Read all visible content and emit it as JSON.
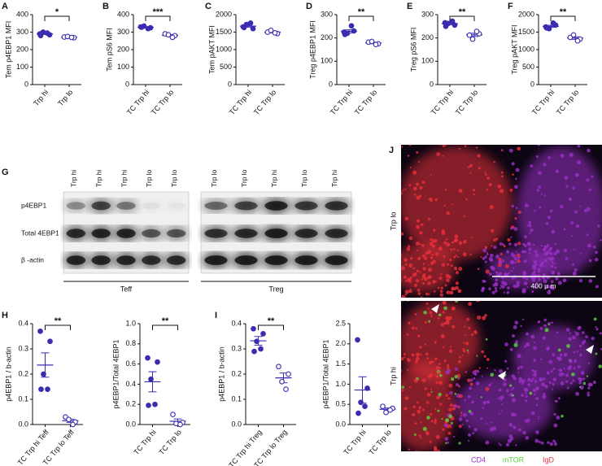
{
  "chart_data": [
    {
      "panel": "A",
      "type": "dot",
      "ylabel": "Tem p4EBP1 MFI",
      "categories": [
        "Trp hi",
        "Trp lo"
      ],
      "values": [
        [
          290,
          285,
          300,
          295,
          280
        ],
        [
          272,
          268,
          275,
          270
        ]
      ],
      "color": "#3b2db0",
      "markers": [
        "filled",
        "open"
      ],
      "ylim": [
        0,
        400
      ],
      "yticks": [
        0,
        100,
        200,
        300,
        400
      ],
      "significance": "*"
    },
    {
      "panel": "B",
      "type": "dot",
      "ylabel": "Tem pS6 MFI",
      "categories": [
        "TC Trp hi",
        "TC Trp lo"
      ],
      "values": [
        [
          330,
          325,
          335,
          320,
          328
        ],
        [
          290,
          280,
          285,
          270
        ]
      ],
      "color": "#3b2db0",
      "markers": [
        "filled",
        "open"
      ],
      "ylim": [
        0,
        400
      ],
      "yticks": [
        0,
        100,
        200,
        300,
        400
      ],
      "significance": "***"
    },
    {
      "panel": "C",
      "type": "dot",
      "ylabel": "Tem pAKT MFI",
      "categories": [
        "TC Trp hi",
        "TC Trp lo"
      ],
      "values": [
        [
          1650,
          1600,
          1720,
          1760,
          1630
        ],
        [
          1500,
          1460,
          1550,
          1480
        ]
      ],
      "color": "#3b2db0",
      "markers": [
        "filled",
        "open"
      ],
      "ylim": [
        0,
        2000
      ],
      "yticks": [
        0,
        500,
        1000,
        1500,
        2000
      ]
    },
    {
      "panel": "D",
      "type": "dot",
      "ylabel": "Treg p4EBP1 MFI",
      "categories": [
        "TC Trp hi",
        "TC Trp lo"
      ],
      "values": [
        [
          225,
          230,
          220,
          252,
          215
        ],
        [
          182,
          175,
          185,
          172
        ]
      ],
      "color": "#3b2db0",
      "markers": [
        "filled",
        "open"
      ],
      "ylim": [
        0,
        300
      ],
      "yticks": [
        0,
        100,
        200,
        300
      ],
      "significance": "**"
    },
    {
      "panel": "E",
      "type": "dot",
      "ylabel": "Treg pS6 MFI",
      "categories": [
        "TC Trp hi",
        "TC Trp lo"
      ],
      "values": [
        [
          265,
          255,
          262,
          272,
          250
        ],
        [
          212,
          218,
          195,
          228
        ]
      ],
      "color": "#3b2db0",
      "markers": [
        "filled",
        "open"
      ],
      "ylim": [
        0,
        300
      ],
      "yticks": [
        0,
        100,
        200,
        300
      ],
      "significance": "**"
    },
    {
      "panel": "F",
      "type": "dot",
      "ylabel": "Treg pAKT MFI",
      "categories": [
        "TC Trp hi",
        "TC Trp lo"
      ],
      "values": [
        [
          1650,
          1700,
          1600,
          1760,
          1620
        ],
        [
          1350,
          1300,
          1420,
          1250
        ]
      ],
      "color": "#3b2db0",
      "markers": [
        "filled",
        "open"
      ],
      "ylim": [
        0,
        2000
      ],
      "yticks": [
        0,
        500,
        1000,
        1500,
        2000
      ],
      "significance": "**"
    },
    {
      "panel": "H",
      "type": "dot",
      "ylabel": "p4EBP1 / b-actin",
      "categories": [
        "TC Trp hi Teff",
        "TC Trp lo Teff"
      ],
      "values": [
        [
          0.37,
          0.33,
          0.2,
          0.14,
          0.14
        ],
        [
          0.03,
          0.01,
          0.02,
          0.0
        ]
      ],
      "color": "#3b2db0",
      "markers": [
        "filled",
        "open"
      ],
      "ylim": [
        0,
        0.4
      ],
      "yticks": [
        {
          "value": 0,
          "label": "0.0"
        },
        0.1,
        0.2,
        0.3,
        0.4
      ],
      "significance": "**"
    },
    {
      "type": "dot",
      "ylabel": "p4EBP1/Total 4EBP1",
      "categories": [
        "TC Trp hi",
        "TC Trp lo"
      ],
      "values": [
        [
          0.66,
          0.62,
          0.45,
          0.2,
          0.19
        ],
        [
          0.1,
          0.02,
          0.01,
          0.0
        ]
      ],
      "color": "#3b2db0",
      "markers": [
        "filled",
        "open"
      ],
      "ylim": [
        0,
        1
      ],
      "yticks": [
        {
          "value": 0,
          "label": "0.0"
        },
        0.2,
        0.4,
        0.6,
        0.8,
        {
          "value": 1,
          "label": "1.0"
        }
      ],
      "significance": "**"
    },
    {
      "panel": "I",
      "type": "dot",
      "ylabel": "p4EBP1 / b-actin",
      "categories": [
        "TC Trp hi Treg",
        "TC Trp lo Treg"
      ],
      "values": [
        [
          0.38,
          0.36,
          0.33,
          0.3,
          0.29
        ],
        [
          0.23,
          0.2,
          0.17,
          0.14
        ]
      ],
      "color": "#3b2db0",
      "markers": [
        "filled",
        "open"
      ],
      "ylim": [
        0,
        0.4
      ],
      "yticks": [
        {
          "value": 0,
          "label": "0.0"
        },
        0.1,
        0.2,
        0.3,
        0.4
      ],
      "significance": "**"
    },
    {
      "type": "dot",
      "ylabel": "p4EBP1/Total 4EBP1",
      "categories": [
        "TC Trp hi",
        "TC Trp lo"
      ],
      "values": [
        [
          2.1,
          0.9,
          0.55,
          0.45,
          0.28
        ],
        [
          0.45,
          0.4,
          0.3,
          0.36
        ]
      ],
      "color": "#3b2db0",
      "markers": [
        "filled",
        "open"
      ],
      "ylim": [
        0,
        2.5
      ],
      "yticks": [
        {
          "value": 0,
          "label": "0.0"
        },
        0.5,
        {
          "value": 1,
          "label": "1.0"
        },
        1.5,
        {
          "value": 2,
          "label": "2.0"
        },
        2.5
      ]
    }
  ],
  "blot": {
    "panel": "G",
    "rows": [
      "p4EBP1",
      "Total 4EBP1",
      "β -actin"
    ],
    "groups": [
      {
        "name": "Teff",
        "lanes": [
          "Trp hi",
          "Trp hi",
          "Trp hi",
          "Trp lo",
          "Trp lo"
        ]
      },
      {
        "name": "Treg",
        "lanes": [
          "Trp lo",
          "Trp lo",
          "Trp hi",
          "Trp lo",
          "Trp hi"
        ]
      }
    ]
  },
  "micrograph": {
    "panel": "J",
    "images": [
      {
        "label": "Trp lo",
        "scale_bar": "400 μ m"
      },
      {
        "label": "Trp hi"
      }
    ],
    "legend": [
      {
        "name": "CD4",
        "color": "#9b30c8"
      },
      {
        "name": "mTOR",
        "color": "#5ad23c"
      },
      {
        "name": "IgD",
        "color": "#e8303a"
      }
    ]
  }
}
